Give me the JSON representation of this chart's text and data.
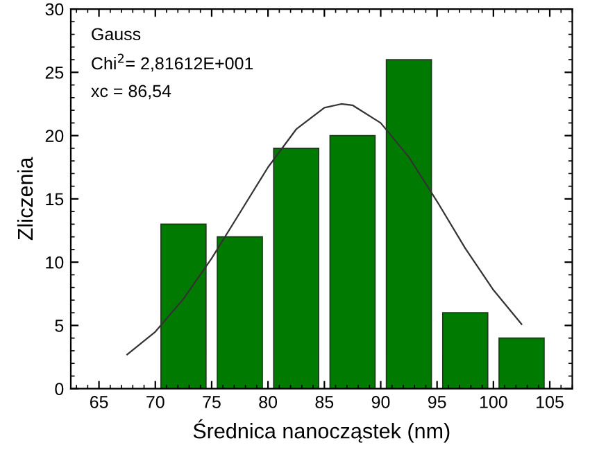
{
  "chart_data": {
    "type": "histogram",
    "xlabel": "Średnica nanocząstek (nm)",
    "ylabel": "Zliczenia",
    "bins": [
      70,
      75,
      80,
      85,
      90,
      95,
      100,
      105
    ],
    "values": [
      13,
      12,
      19,
      20,
      26,
      6,
      4
    ],
    "color": "#007a00",
    "series": [
      {
        "type": "line",
        "color": "#333333",
        "x": [
          67.5,
          70,
          72.5,
          75,
          77.5,
          80,
          82.5,
          85,
          86.5,
          87.5,
          90,
          92.5,
          95,
          97.5,
          100,
          102.5
        ],
        "values": [
          2.7,
          4.5,
          7.1,
          10.3,
          13.9,
          17.5,
          20.5,
          22.2,
          22.5,
          22.4,
          21.0,
          18.3,
          14.8,
          11.1,
          7.8,
          5.1
        ]
      }
    ],
    "annotations": [
      "Gauss",
      "Chi$^{2}$= 2,81612E+001",
      "xc = 86,54"
    ],
    "xlim": [
      62.5,
      107
    ],
    "xticks": [
      65,
      70,
      75,
      80,
      85,
      90,
      95,
      100,
      105
    ],
    "ylim": [
      0,
      30
    ],
    "yticks": [
      0,
      5,
      10,
      15,
      20,
      25,
      30
    ],
    "grid": false,
    "legend": false
  }
}
